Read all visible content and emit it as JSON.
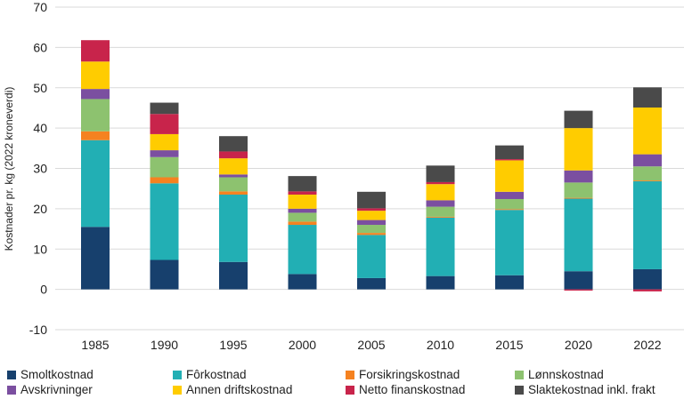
{
  "chart_data": {
    "type": "bar",
    "stacked": true,
    "categories": [
      "1985",
      "1990",
      "1995",
      "2000",
      "2005",
      "2010",
      "2015",
      "2020",
      "2022"
    ],
    "ylabel": "Kostnader pr. kg (2022 kroneverdi)",
    "ylim": [
      -10,
      70
    ],
    "yticks": [
      "70",
      "60",
      "50",
      "40",
      "30",
      "20",
      "10",
      "0",
      "-10"
    ],
    "grid": true,
    "legend_position": "bottom",
    "series": [
      {
        "name": "Smoltkostnad",
        "color": "#17406d",
        "values": [
          15.5,
          7.3,
          6.8,
          3.8,
          2.8,
          3.3,
          3.5,
          4.5,
          5.0
        ]
      },
      {
        "name": "Fôrkostnad",
        "color": "#22afb4",
        "values": [
          21.5,
          19.0,
          16.7,
          12.2,
          10.7,
          14.5,
          16.2,
          18.0,
          21.8
        ]
      },
      {
        "name": "Forsikringskostnad",
        "color": "#f58220",
        "values": [
          2.2,
          1.5,
          0.8,
          0.8,
          0.5,
          0.2,
          0.2,
          0.2,
          0.2
        ]
      },
      {
        "name": "Lønnskostnad",
        "color": "#8dc26f",
        "values": [
          8.0,
          5.0,
          3.5,
          2.2,
          2.0,
          2.5,
          2.5,
          3.8,
          3.5
        ]
      },
      {
        "name": "Avskrivninger",
        "color": "#7b4fa0",
        "values": [
          2.5,
          1.7,
          0.7,
          1.0,
          1.2,
          1.6,
          1.8,
          3.0,
          3.0
        ]
      },
      {
        "name": "Annen driftskostnad",
        "color": "#ffcc00",
        "values": [
          6.8,
          4.0,
          4.0,
          3.5,
          2.3,
          4.0,
          7.8,
          10.5,
          11.6
        ]
      },
      {
        "name": "Netto finanskostnad",
        "color": "#c8244b",
        "values": [
          5.3,
          5.0,
          1.7,
          0.8,
          0.6,
          0.5,
          0.3,
          -0.3,
          -0.5
        ]
      },
      {
        "name": "Slaktekostnad inkl. frakt",
        "color": "#4a4a4a",
        "values": [
          0.0,
          2.8,
          3.8,
          3.8,
          4.1,
          4.1,
          3.4,
          4.3,
          5.0
        ]
      }
    ]
  }
}
